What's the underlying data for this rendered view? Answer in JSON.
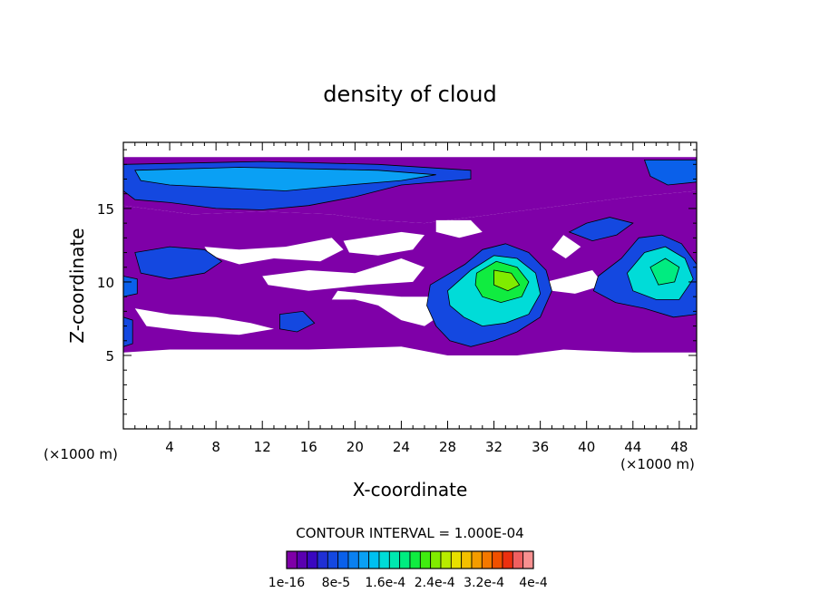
{
  "chart_data": {
    "type": "heatmap",
    "title": "density of cloud",
    "xlabel": "X-coordinate",
    "ylabel": "Z-coordinate",
    "x_units": "(×1000 m)",
    "x_units_right": "(×1000 m)",
    "xlim": [
      0,
      49.5
    ],
    "ylim": [
      0,
      19.5
    ],
    "x_ticks": [
      4,
      8,
      12,
      16,
      20,
      24,
      28,
      32,
      36,
      40,
      44,
      48
    ],
    "y_ticks": [
      5,
      10,
      15
    ],
    "contour_interval_text": "CONTOUR INTERVAL = 1.000E-04",
    "colorbar": {
      "tick_labels": [
        "1e-16",
        "8e-5",
        "1.6e-4",
        "2.4e-4",
        "3.2e-4",
        "4e-4"
      ],
      "colors": [
        "#7f00a8",
        "#5a00b0",
        "#3a08c0",
        "#2030d4",
        "#1448e0",
        "#0a60ea",
        "#0a80f0",
        "#0aa0f4",
        "#00c0f0",
        "#00dcd8",
        "#00e8b0",
        "#00ec80",
        "#10ec40",
        "#40ec10",
        "#80ec00",
        "#b8ec00",
        "#e8e000",
        "#f4c000",
        "#f49c00",
        "#f47800",
        "#f05000",
        "#ec3010",
        "#f06060",
        "#f89090"
      ]
    },
    "regions": [
      {
        "name": "upper-layer",
        "level": 0,
        "poly": [
          [
            0,
            18.5
          ],
          [
            49.5,
            18.5
          ],
          [
            49.5,
            16.2
          ],
          [
            44,
            15.8
          ],
          [
            40,
            15.4
          ],
          [
            36,
            15.0
          ],
          [
            30,
            14.4
          ],
          [
            26,
            14.0
          ],
          [
            22,
            14.2
          ],
          [
            18,
            14.6
          ],
          [
            12,
            14.8
          ],
          [
            6,
            14.6
          ],
          [
            0,
            15.2
          ]
        ]
      },
      {
        "name": "upper-band-blue-1",
        "level": 4,
        "poly": [
          [
            0,
            18.0
          ],
          [
            12,
            18.2
          ],
          [
            22,
            18.0
          ],
          [
            30,
            17.6
          ],
          [
            30,
            17.0
          ],
          [
            24,
            16.6
          ],
          [
            20,
            15.8
          ],
          [
            16,
            15.2
          ],
          [
            12,
            14.9
          ],
          [
            8,
            15.0
          ],
          [
            4,
            15.4
          ],
          [
            1,
            15.6
          ],
          [
            0,
            16.2
          ]
        ]
      },
      {
        "name": "upper-band-blue-2",
        "level": 7,
        "poly": [
          [
            1,
            17.6
          ],
          [
            10,
            17.8
          ],
          [
            22,
            17.6
          ],
          [
            27,
            17.3
          ],
          [
            24,
            16.9
          ],
          [
            18,
            16.5
          ],
          [
            14,
            16.2
          ],
          [
            9,
            16.4
          ],
          [
            4,
            16.6
          ],
          [
            1.5,
            16.9
          ]
        ]
      },
      {
        "name": "upper-band-right-blue",
        "level": 5,
        "poly": [
          [
            45,
            18.3
          ],
          [
            49.5,
            18.3
          ],
          [
            49.5,
            16.8
          ],
          [
            47,
            16.6
          ],
          [
            45.5,
            17.2
          ]
        ]
      },
      {
        "name": "main-body",
        "level": 0,
        "poly": [
          [
            0,
            15.2
          ],
          [
            6,
            14.6
          ],
          [
            12,
            14.8
          ],
          [
            18,
            14.6
          ],
          [
            22,
            14.2
          ],
          [
            26,
            14.0
          ],
          [
            30,
            14.4
          ],
          [
            36,
            15.0
          ],
          [
            40,
            15.4
          ],
          [
            44,
            15.8
          ],
          [
            49.5,
            16.2
          ],
          [
            49.5,
            5.2
          ],
          [
            44,
            5.2
          ],
          [
            38,
            5.4
          ],
          [
            34,
            5.0
          ],
          [
            28,
            5.0
          ],
          [
            24,
            5.6
          ],
          [
            16,
            5.4
          ],
          [
            10,
            5.4
          ],
          [
            4,
            5.4
          ],
          [
            0,
            5.2
          ]
        ]
      },
      {
        "name": "left-middle-blue",
        "level": 4,
        "poly": [
          [
            1,
            12.0
          ],
          [
            4,
            12.4
          ],
          [
            7,
            12.2
          ],
          [
            8.5,
            11.4
          ],
          [
            7,
            10.6
          ],
          [
            4,
            10.2
          ],
          [
            1.5,
            10.6
          ]
        ]
      },
      {
        "name": "left-edge-blue",
        "level": 5,
        "poly": [
          [
            0,
            10.4
          ],
          [
            1.2,
            10.2
          ],
          [
            1.2,
            9.2
          ],
          [
            0,
            9.0
          ]
        ]
      },
      {
        "name": "left-lower-blue",
        "level": 4,
        "poly": [
          [
            0,
            7.6
          ],
          [
            0.8,
            7.4
          ],
          [
            0.8,
            5.8
          ],
          [
            0,
            5.6
          ]
        ]
      },
      {
        "name": "mid-small-blue",
        "level": 4,
        "poly": [
          [
            13.5,
            7.8
          ],
          [
            15.5,
            8.0
          ],
          [
            16.5,
            7.2
          ],
          [
            15,
            6.6
          ],
          [
            13.5,
            6.8
          ]
        ]
      },
      {
        "name": "central-cell-blue",
        "level": 4,
        "poly": [
          [
            26.5,
            9.8
          ],
          [
            29.5,
            11.2
          ],
          [
            31,
            12.2
          ],
          [
            33,
            12.6
          ],
          [
            35,
            12.0
          ],
          [
            36.5,
            10.8
          ],
          [
            37,
            9.4
          ],
          [
            36,
            7.6
          ],
          [
            34,
            6.6
          ],
          [
            32,
            6.0
          ],
          [
            30,
            5.6
          ],
          [
            28.2,
            6.0
          ],
          [
            27,
            7.0
          ],
          [
            26.2,
            8.4
          ]
        ]
      },
      {
        "name": "central-cell-cyan",
        "level": 9,
        "poly": [
          [
            28,
            9.4
          ],
          [
            30,
            10.8
          ],
          [
            32,
            11.8
          ],
          [
            34,
            11.6
          ],
          [
            35.6,
            10.6
          ],
          [
            36,
            9.2
          ],
          [
            35,
            7.8
          ],
          [
            33,
            7.2
          ],
          [
            31,
            7.0
          ],
          [
            29.4,
            7.6
          ],
          [
            28.2,
            8.4
          ]
        ]
      },
      {
        "name": "central-cell-green",
        "level": 12,
        "poly": [
          [
            30.5,
            10.6
          ],
          [
            32.2,
            11.4
          ],
          [
            34,
            11.0
          ],
          [
            35,
            10.0
          ],
          [
            34.4,
            9.0
          ],
          [
            32.6,
            8.6
          ],
          [
            31,
            9.0
          ],
          [
            30.4,
            9.8
          ]
        ]
      },
      {
        "name": "central-cell-core",
        "level": 14,
        "poly": [
          [
            32,
            10.8
          ],
          [
            33.5,
            10.6
          ],
          [
            34.2,
            9.8
          ],
          [
            33.2,
            9.4
          ],
          [
            32,
            9.8
          ]
        ]
      },
      {
        "name": "right-cell-blue",
        "level": 4,
        "poly": [
          [
            41,
            10.4
          ],
          [
            43,
            11.6
          ],
          [
            44.5,
            13.0
          ],
          [
            46.5,
            13.2
          ],
          [
            48.2,
            12.6
          ],
          [
            49.5,
            11.2
          ],
          [
            49.5,
            7.8
          ],
          [
            47.5,
            7.6
          ],
          [
            45,
            8.2
          ],
          [
            42.5,
            8.6
          ],
          [
            40.6,
            9.4
          ]
        ]
      },
      {
        "name": "right-cell-cyan",
        "level": 9,
        "poly": [
          [
            43.5,
            10.6
          ],
          [
            45,
            12.0
          ],
          [
            46.8,
            12.4
          ],
          [
            48.5,
            11.6
          ],
          [
            49.2,
            10.2
          ],
          [
            48,
            8.8
          ],
          [
            46,
            8.8
          ],
          [
            44,
            9.4
          ]
        ]
      },
      {
        "name": "right-cell-green",
        "level": 11,
        "poly": [
          [
            45.5,
            11.0
          ],
          [
            46.8,
            11.6
          ],
          [
            48,
            11.0
          ],
          [
            47.6,
            10.0
          ],
          [
            46.2,
            9.8
          ]
        ]
      },
      {
        "name": "right-top-blue",
        "level": 4,
        "poly": [
          [
            38.5,
            13.4
          ],
          [
            40,
            14.0
          ],
          [
            42,
            14.4
          ],
          [
            44,
            14.0
          ],
          [
            42.6,
            13.2
          ],
          [
            40.5,
            12.8
          ]
        ]
      }
    ],
    "gaps": [
      {
        "name": "gap-1",
        "poly": [
          [
            7,
            12.4
          ],
          [
            10,
            12.2
          ],
          [
            14,
            12.4
          ],
          [
            18,
            13.0
          ],
          [
            19,
            12.2
          ],
          [
            17,
            11.4
          ],
          [
            13,
            11.6
          ],
          [
            10,
            11.2
          ],
          [
            7.5,
            11.8
          ]
        ]
      },
      {
        "name": "gap-2",
        "poly": [
          [
            12,
            10.4
          ],
          [
            16,
            10.8
          ],
          [
            20,
            10.6
          ],
          [
            24,
            11.6
          ],
          [
            26,
            11.0
          ],
          [
            25,
            10.0
          ],
          [
            21,
            9.8
          ],
          [
            16,
            9.4
          ],
          [
            12.5,
            9.8
          ]
        ]
      },
      {
        "name": "gap-3",
        "poly": [
          [
            19,
            12.8
          ],
          [
            24,
            13.4
          ],
          [
            26,
            13.2
          ],
          [
            25,
            12.2
          ],
          [
            22,
            11.8
          ],
          [
            19.5,
            12.0
          ]
        ]
      },
      {
        "name": "gap-4",
        "poly": [
          [
            27,
            14.2
          ],
          [
            30,
            14.2
          ],
          [
            31,
            13.4
          ],
          [
            29,
            13.0
          ],
          [
            27,
            13.4
          ]
        ]
      },
      {
        "name": "gap-5",
        "poly": [
          [
            18,
            8.8
          ],
          [
            20,
            8.8
          ],
          [
            22,
            8.4
          ],
          [
            24,
            7.4
          ],
          [
            26,
            7.0
          ],
          [
            27.5,
            7.8
          ],
          [
            26.5,
            9.0
          ],
          [
            24,
            9.0
          ],
          [
            21,
            9.2
          ],
          [
            18.5,
            9.4
          ]
        ]
      },
      {
        "name": "gap-6",
        "poly": [
          [
            1,
            8.2
          ],
          [
            4,
            7.8
          ],
          [
            8,
            7.6
          ],
          [
            11,
            7.2
          ],
          [
            13,
            6.8
          ],
          [
            10,
            6.4
          ],
          [
            6,
            6.6
          ],
          [
            2,
            7.0
          ]
        ]
      },
      {
        "name": "gap-7",
        "poly": [
          [
            36.5,
            10.0
          ],
          [
            38.5,
            10.4
          ],
          [
            40.5,
            10.8
          ],
          [
            41.5,
            9.8
          ],
          [
            39,
            9.2
          ],
          [
            37,
            9.4
          ]
        ]
      },
      {
        "name": "gap-8",
        "poly": [
          [
            37,
            12.2
          ],
          [
            38,
            13.2
          ],
          [
            39.5,
            12.4
          ],
          [
            38.2,
            11.6
          ]
        ]
      }
    ]
  }
}
